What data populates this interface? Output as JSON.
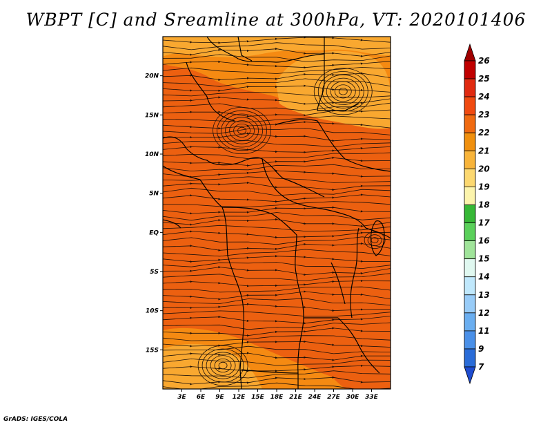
{
  "title": "WBPT [C] and Sreamline at 300hPa, VT: 2020101406",
  "footer": "GrADS: IGES/COLA",
  "map": {
    "lon_range": [
      0,
      36
    ],
    "lat_range": [
      -20,
      25
    ],
    "x_ticks": [
      {
        "value": 3,
        "label": "3E"
      },
      {
        "value": 6,
        "label": "6E"
      },
      {
        "value": 9,
        "label": "9E"
      },
      {
        "value": 12,
        "label": "12E"
      },
      {
        "value": 15,
        "label": "15E"
      },
      {
        "value": 18,
        "label": "18E"
      },
      {
        "value": 21,
        "label": "21E"
      },
      {
        "value": 24,
        "label": "24E"
      },
      {
        "value": 27,
        "label": "27E"
      },
      {
        "value": 30,
        "label": "30E"
      },
      {
        "value": 33,
        "label": "33E"
      }
    ],
    "y_ticks": [
      {
        "value": 20,
        "label": "20N"
      },
      {
        "value": 15,
        "label": "15N"
      },
      {
        "value": 10,
        "label": "10N"
      },
      {
        "value": 5,
        "label": "5N"
      },
      {
        "value": 0,
        "label": "EQ"
      },
      {
        "value": -5,
        "label": "5S"
      },
      {
        "value": -10,
        "label": "10S"
      },
      {
        "value": -15,
        "label": "15S"
      }
    ]
  },
  "colorbar": {
    "levels": [
      "26",
      "25",
      "24",
      "23",
      "22",
      "21",
      "20",
      "19",
      "18",
      "17",
      "16",
      "15",
      "14",
      "13",
      "12",
      "11",
      "9",
      "7"
    ],
    "colors": [
      "#a00000",
      "#c00000",
      "#e02a10",
      "#f04a10",
      "#f06a10",
      "#f0900e",
      "#f8b43a",
      "#fcd870",
      "#fcf4ac",
      "#36b836",
      "#5ad05a",
      "#a0e49a",
      "#e0f8f0",
      "#c0e8fc",
      "#98ccf8",
      "#6aaef0",
      "#4a90e8",
      "#2a6cd8",
      "#1e4cd0"
    ]
  },
  "colors": {
    "base_fill": "#ec6010",
    "warm_21": "#f58a12",
    "warm_20": "#f9a830",
    "stream": "#1a0f0a"
  }
}
